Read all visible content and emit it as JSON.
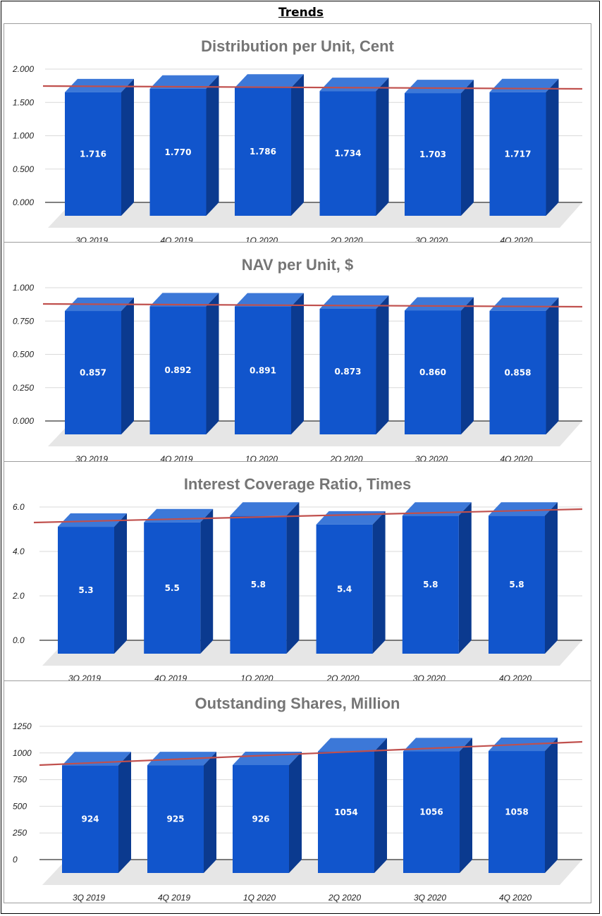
{
  "page_title": "Trends",
  "colors": {
    "bar_front": "#1155cc",
    "bar_top": "#3c78d8",
    "bar_side": "#0b3a8f",
    "trendline": "#c0504d",
    "floor": "#e6e6e6",
    "grid": "#d9d9d9",
    "title_text": "#757575"
  },
  "chart_data": [
    {
      "type": "bar",
      "title": "Distribution per Unit, Cent",
      "categories": [
        "3Q 2019",
        "4Q 2019",
        "1Q 2020",
        "2Q 2020",
        "3Q 2020",
        "4Q 2020"
      ],
      "values": [
        1.716,
        1.77,
        1.786,
        1.734,
        1.703,
        1.717
      ],
      "data_labels": [
        "1.716",
        "1.770",
        "1.786",
        "1.734",
        "1.703",
        "1.717"
      ],
      "yticks": [
        "0.000",
        "0.500",
        "1.000",
        "1.500",
        "2.000"
      ],
      "ylim": [
        0,
        2
      ],
      "grid": true,
      "trendline": true
    },
    {
      "type": "bar",
      "title": "NAV per Unit, $",
      "categories": [
        "3Q 2019",
        "4Q 2019",
        "1Q 2020",
        "2Q 2020",
        "3Q 2020",
        "4Q 2020"
      ],
      "values": [
        0.857,
        0.892,
        0.891,
        0.873,
        0.86,
        0.858
      ],
      "data_labels": [
        "0.857",
        "0.892",
        "0.891",
        "0.873",
        "0.860",
        "0.858"
      ],
      "yticks": [
        "0.000",
        "0.250",
        "0.500",
        "0.750",
        "1.000"
      ],
      "ylim": [
        0,
        1
      ],
      "grid": true,
      "trendline": true
    },
    {
      "type": "bar",
      "title": "Interest Coverage Ratio, Times",
      "categories": [
        "3Q 2019",
        "4Q 2019",
        "1Q 2020",
        "2Q 2020",
        "3Q 2020",
        "4Q 2020"
      ],
      "values": [
        5.3,
        5.5,
        5.8,
        5.4,
        5.8,
        5.8
      ],
      "data_labels": [
        "5.3",
        "5.5",
        "5.8",
        "5.4",
        "5.8",
        "5.8"
      ],
      "yticks": [
        "0.0",
        "2.0",
        "4.0",
        "6.0"
      ],
      "ylim": [
        0,
        6
      ],
      "grid": true,
      "trendline": true
    },
    {
      "type": "bar",
      "title": "Outstanding Shares, Million",
      "categories": [
        "3Q 2019",
        "4Q 2019",
        "1Q 2020",
        "2Q 2020",
        "3Q 2020",
        "4Q 2020"
      ],
      "values": [
        924,
        925,
        926,
        1054,
        1056,
        1058
      ],
      "data_labels": [
        "924",
        "925",
        "926",
        "1054",
        "1056",
        "1058"
      ],
      "yticks": [
        "0",
        "250",
        "500",
        "750",
        "1000",
        "1250"
      ],
      "ylim": [
        0,
        1250
      ],
      "grid": true,
      "trendline": true
    }
  ]
}
